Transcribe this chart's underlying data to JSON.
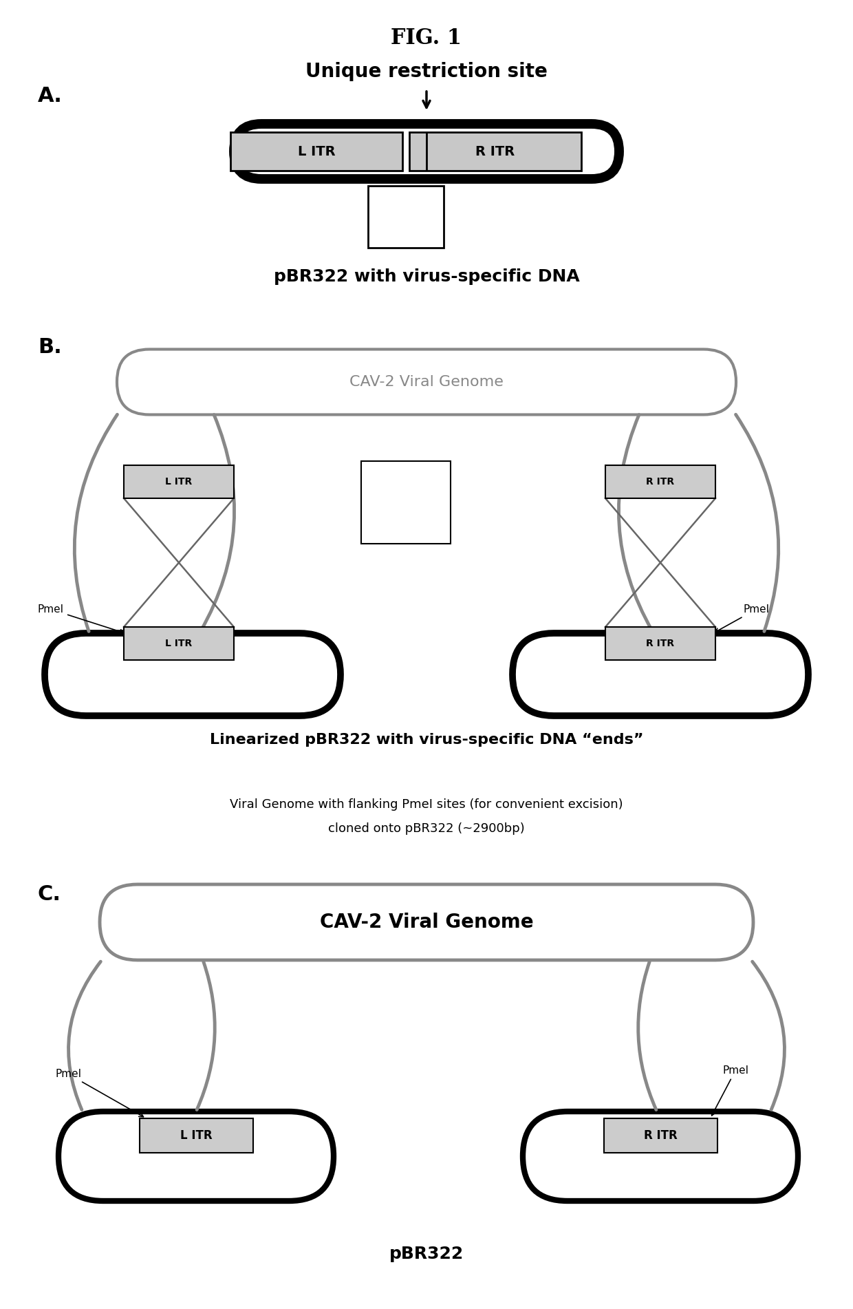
{
  "title": "FIG. 1",
  "bg_color": "#ffffff",
  "figsize": [
    12.4,
    19.02
  ],
  "dpi": 100,
  "panel_A": {
    "label": "A.",
    "text_restriction": "Unique restriction site",
    "text_pbr322": "pBR322 with virus-specific DNA"
  },
  "panel_B": {
    "label": "B.",
    "text_cav2": "CAV-2 Viral Genome",
    "text_linear": "Linearized pBR322 with virus-specific DNA “ends”",
    "pmel_label": "PmeI"
  },
  "panel_C": {
    "label": "C.",
    "text_cav2": "CAV-2 Viral Genome",
    "text_above1": "Viral Genome with flanking PmeI sites (for convenient excision)",
    "text_above2": "cloned onto pBR322 (~2900bp)",
    "text_pbr322": "pBR322",
    "pmel_label": "PmeI"
  },
  "colors": {
    "black": "#000000",
    "dark_gray_border": "#555555",
    "light_gray_border": "#999999",
    "itr_fill": "#cccccc",
    "white": "#ffffff"
  }
}
